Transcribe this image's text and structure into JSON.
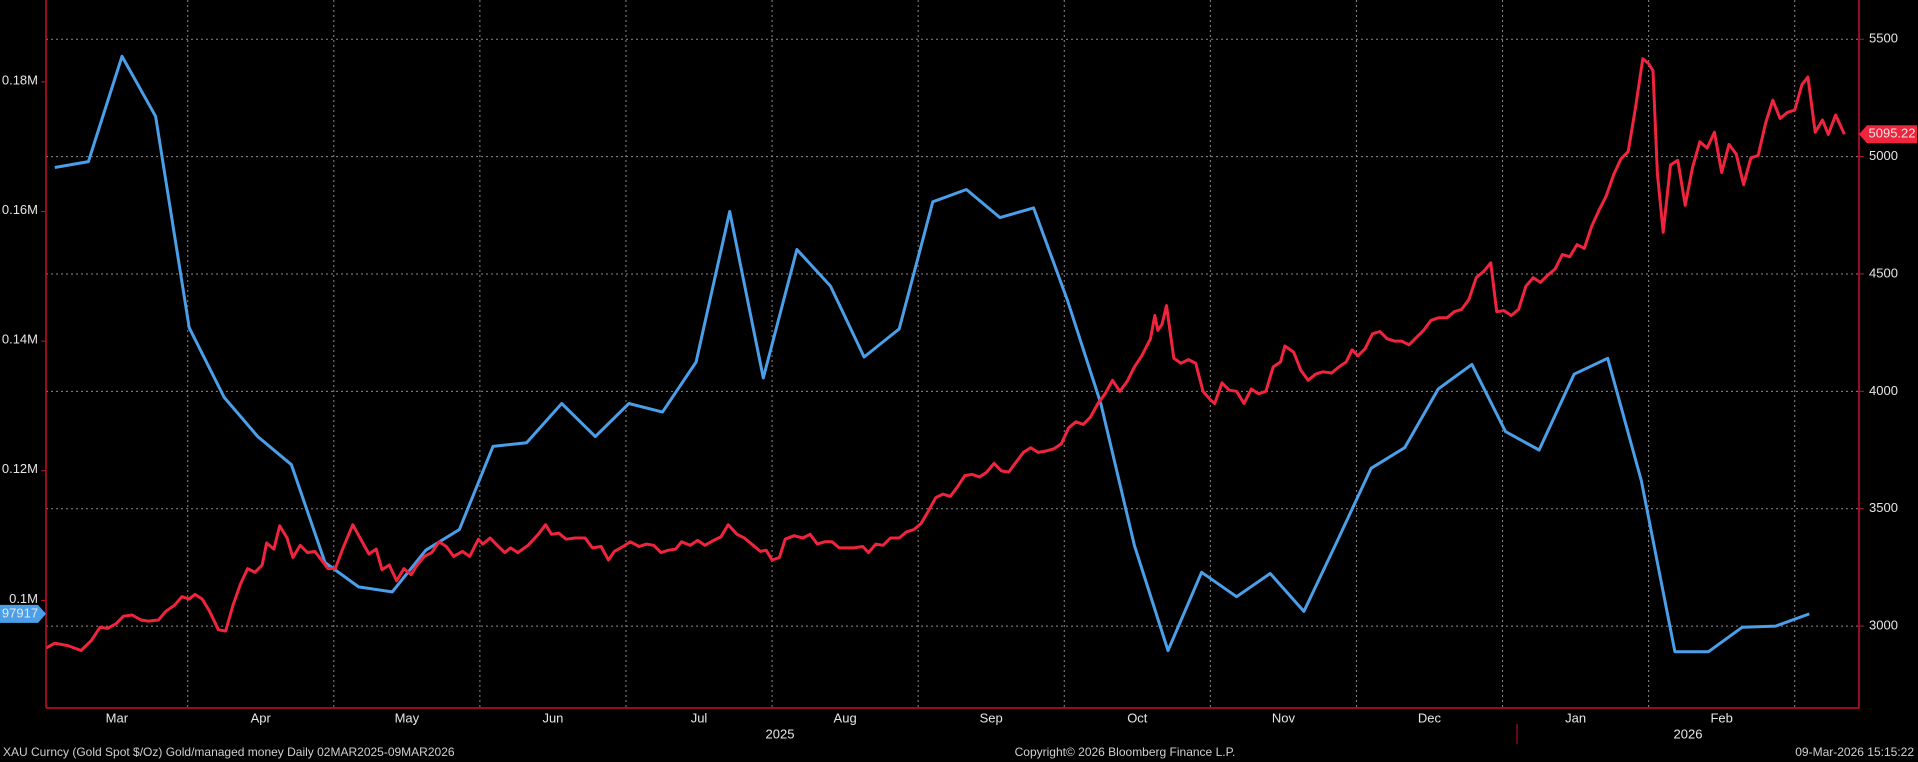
{
  "chart_data": {
    "type": "line",
    "source": "XAU Curncy (Gold Spot  $/Oz) Gold/managed money Daily 02MAR2025-09MAR2026",
    "copyright": "Copyright© 2026 Bloomberg Finance L.P.",
    "timestamp": "09-Mar-2026 15:15:22",
    "year_labels": [
      "2025",
      "2026"
    ],
    "grid": true,
    "xlim": [
      0.03,
      12.44
    ],
    "xticks": [
      {
        "value": 0,
        "label": "Mar"
      },
      {
        "value": 1,
        "label": "Apr"
      },
      {
        "value": 2,
        "label": "May"
      },
      {
        "value": 3,
        "label": "Jun"
      },
      {
        "value": 4,
        "label": "Jul"
      },
      {
        "value": 5,
        "label": "Aug"
      },
      {
        "value": 6,
        "label": "Sep"
      },
      {
        "value": 7,
        "label": "Oct"
      },
      {
        "value": 8,
        "label": "Nov"
      },
      {
        "value": 9,
        "label": "Dec"
      },
      {
        "value": 10,
        "label": "Jan"
      },
      {
        "value": 11,
        "label": "Feb"
      },
      {
        "value": 12,
        "label": null
      }
    ],
    "ylim": [
      83400,
      192640
    ],
    "yticks": [
      {
        "value": 100000,
        "label": "0.1M"
      },
      {
        "value": 120000,
        "label": "0.12M"
      },
      {
        "value": 140000,
        "label": "0.14M"
      },
      {
        "value": 160000,
        "label": "0.16M"
      },
      {
        "value": 180000,
        "label": "0.18M"
      }
    ],
    "y2lim": [
      2651,
      5667
    ],
    "y2ticks": [
      3000,
      3500,
      4000,
      4500,
      5000,
      5500
    ],
    "series": [
      {
        "color": "#4a9fe8",
        "axis": "y",
        "x": [
          0.09,
          0.32,
          0.55,
          0.78,
          1.01,
          1.25,
          1.48,
          1.71,
          1.94,
          2.17,
          2.4,
          2.63,
          2.86,
          3.09,
          3.32,
          3.56,
          3.79,
          4.02,
          4.25,
          4.48,
          4.71,
          4.94,
          5.17,
          5.4,
          5.63,
          5.87,
          6.1,
          6.33,
          6.56,
          6.79,
          7.02,
          7.25,
          7.48,
          7.71,
          7.94,
          8.18,
          8.41,
          8.64,
          8.87,
          9.1,
          9.33,
          9.56,
          9.79,
          10.02,
          10.25,
          10.49,
          10.72,
          10.95,
          11.18,
          11.41,
          11.64,
          11.87,
          12.1
        ],
        "values": [
          166800,
          167700,
          183960,
          174700,
          142080,
          131320,
          125280,
          120940,
          105850,
          102080,
          101320,
          107740,
          110940,
          123770,
          124340,
          130380,
          125280,
          130380,
          129060,
          136790,
          160000,
          134340,
          154150,
          148490,
          137550,
          141890,
          161510,
          163400,
          159060,
          160570,
          146420,
          130380,
          108490,
          92260,
          104340,
          100570,
          104150,
          98300,
          109250,
          120380,
          123580,
          132640,
          136420,
          126040,
          123210,
          134910,
          137360,
          118490,
          92080,
          92080,
          95850,
          96040,
          97917
        ]
      },
      {
        "color": "#f0243c",
        "axis": "y2",
        "x": [
          0.03,
          0.09,
          0.18,
          0.27,
          0.34,
          0.4,
          0.45,
          0.51,
          0.56,
          0.62,
          0.68,
          0.73,
          0.8,
          0.85,
          0.91,
          0.96,
          1.01,
          1.05,
          1.1,
          1.15,
          1.21,
          1.26,
          1.31,
          1.36,
          1.41,
          1.46,
          1.51,
          1.54,
          1.59,
          1.63,
          1.68,
          1.72,
          1.77,
          1.82,
          1.87,
          1.91,
          1.96,
          2.01,
          2.06,
          2.13,
          2.18,
          2.24,
          2.29,
          2.33,
          2.38,
          2.43,
          2.48,
          2.53,
          2.57,
          2.62,
          2.67,
          2.72,
          2.77,
          2.82,
          2.88,
          2.93,
          2.99,
          3.02,
          3.07,
          3.11,
          3.17,
          3.21,
          3.26,
          3.33,
          3.4,
          3.45,
          3.49,
          3.54,
          3.59,
          3.65,
          3.72,
          3.77,
          3.83,
          3.88,
          3.92,
          3.98,
          4.03,
          4.09,
          4.14,
          4.19,
          4.24,
          4.29,
          4.34,
          4.38,
          4.44,
          4.49,
          4.54,
          4.6,
          4.65,
          4.7,
          4.76,
          4.81,
          4.87,
          4.92,
          4.96,
          5.0,
          5.05,
          5.09,
          5.15,
          5.21,
          5.26,
          5.31,
          5.36,
          5.41,
          5.46,
          5.51,
          5.56,
          5.62,
          5.66,
          5.71,
          5.76,
          5.81,
          5.87,
          5.92,
          5.97,
          6.02,
          6.07,
          6.12,
          6.17,
          6.22,
          6.27,
          6.32,
          6.37,
          6.42,
          6.47,
          6.52,
          6.57,
          6.62,
          6.67,
          6.72,
          6.77,
          6.82,
          6.87,
          6.93,
          6.98,
          7.03,
          7.08,
          7.13,
          7.18,
          7.23,
          7.28,
          7.33,
          7.38,
          7.43,
          7.48,
          7.53,
          7.59,
          7.62,
          7.64,
          7.67,
          7.7,
          7.72,
          7.75,
          7.8,
          7.85,
          7.9,
          7.95,
          8.0,
          8.03,
          8.08,
          8.13,
          8.18,
          8.23,
          8.28,
          8.33,
          8.38,
          8.43,
          8.48,
          8.51,
          8.57,
          8.62,
          8.67,
          8.72,
          8.77,
          8.83,
          8.88,
          8.93,
          8.97,
          9.01,
          9.06,
          9.11,
          9.16,
          9.21,
          9.26,
          9.31,
          9.36,
          9.41,
          9.46,
          9.51,
          9.56,
          9.62,
          9.67,
          9.72,
          9.77,
          9.82,
          9.87,
          9.92,
          9.96,
          10.01,
          10.06,
          10.11,
          10.16,
          10.21,
          10.26,
          10.31,
          10.36,
          10.41,
          10.46,
          10.51,
          10.56,
          10.61,
          10.66,
          10.71,
          10.76,
          10.81,
          10.86,
          10.91,
          10.96,
          11.0,
          11.03,
          11.06,
          11.1,
          11.15,
          11.2,
          11.25,
          11.3,
          11.35,
          11.4,
          11.45,
          11.5,
          11.55,
          11.6,
          11.65,
          11.7,
          11.75,
          11.8,
          11.85,
          11.9,
          11.95,
          12.0,
          12.05,
          12.09,
          12.14,
          12.19,
          12.23,
          12.28,
          12.34
        ],
        "values": [
          2906,
          2927,
          2917,
          2896,
          2938,
          2995,
          2990,
          3010,
          3042,
          3047,
          3026,
          3021,
          3026,
          3063,
          3089,
          3125,
          3115,
          3135,
          3115,
          3063,
          2984,
          2979,
          3089,
          3177,
          3245,
          3229,
          3260,
          3354,
          3328,
          3427,
          3375,
          3292,
          3344,
          3313,
          3318,
          3286,
          3245,
          3245,
          3328,
          3432,
          3375,
          3307,
          3328,
          3240,
          3260,
          3193,
          3245,
          3219,
          3260,
          3297,
          3313,
          3359,
          3339,
          3297,
          3318,
          3297,
          3370,
          3349,
          3375,
          3349,
          3313,
          3333,
          3313,
          3344,
          3391,
          3432,
          3391,
          3396,
          3370,
          3375,
          3375,
          3333,
          3339,
          3281,
          3318,
          3339,
          3359,
          3339,
          3349,
          3344,
          3313,
          3323,
          3328,
          3359,
          3344,
          3365,
          3344,
          3365,
          3380,
          3432,
          3391,
          3375,
          3344,
          3318,
          3323,
          3281,
          3292,
          3370,
          3385,
          3375,
          3391,
          3349,
          3359,
          3359,
          3333,
          3333,
          3333,
          3339,
          3313,
          3349,
          3344,
          3375,
          3375,
          3401,
          3411,
          3437,
          3490,
          3547,
          3562,
          3552,
          3594,
          3641,
          3646,
          3635,
          3656,
          3693,
          3661,
          3656,
          3698,
          3740,
          3760,
          3740,
          3745,
          3755,
          3776,
          3844,
          3870,
          3859,
          3891,
          3948,
          3990,
          4047,
          4000,
          4042,
          4104,
          4151,
          4224,
          4323,
          4260,
          4286,
          4365,
          4276,
          4141,
          4120,
          4135,
          4120,
          4000,
          3964,
          3948,
          4036,
          4005,
          4000,
          3948,
          4010,
          3990,
          4000,
          4104,
          4125,
          4193,
          4167,
          4089,
          4047,
          4073,
          4083,
          4078,
          4104,
          4125,
          4177,
          4151,
          4182,
          4245,
          4255,
          4224,
          4214,
          4214,
          4198,
          4229,
          4260,
          4302,
          4313,
          4313,
          4339,
          4349,
          4391,
          4484,
          4510,
          4547,
          4339,
          4344,
          4323,
          4349,
          4448,
          4484,
          4464,
          4495,
          4521,
          4583,
          4573,
          4625,
          4609,
          4703,
          4771,
          4833,
          4922,
          4990,
          5021,
          5208,
          5417,
          5396,
          5365,
          4927,
          4677,
          4964,
          4984,
          4792,
          4953,
          5063,
          5036,
          5104,
          4932,
          5052,
          5010,
          4880,
          4995,
          5005,
          5141,
          5240,
          5162,
          5188,
          5198,
          5307,
          5339,
          5104,
          5156,
          5094,
          5177,
          5095.22
        ]
      }
    ]
  }
}
